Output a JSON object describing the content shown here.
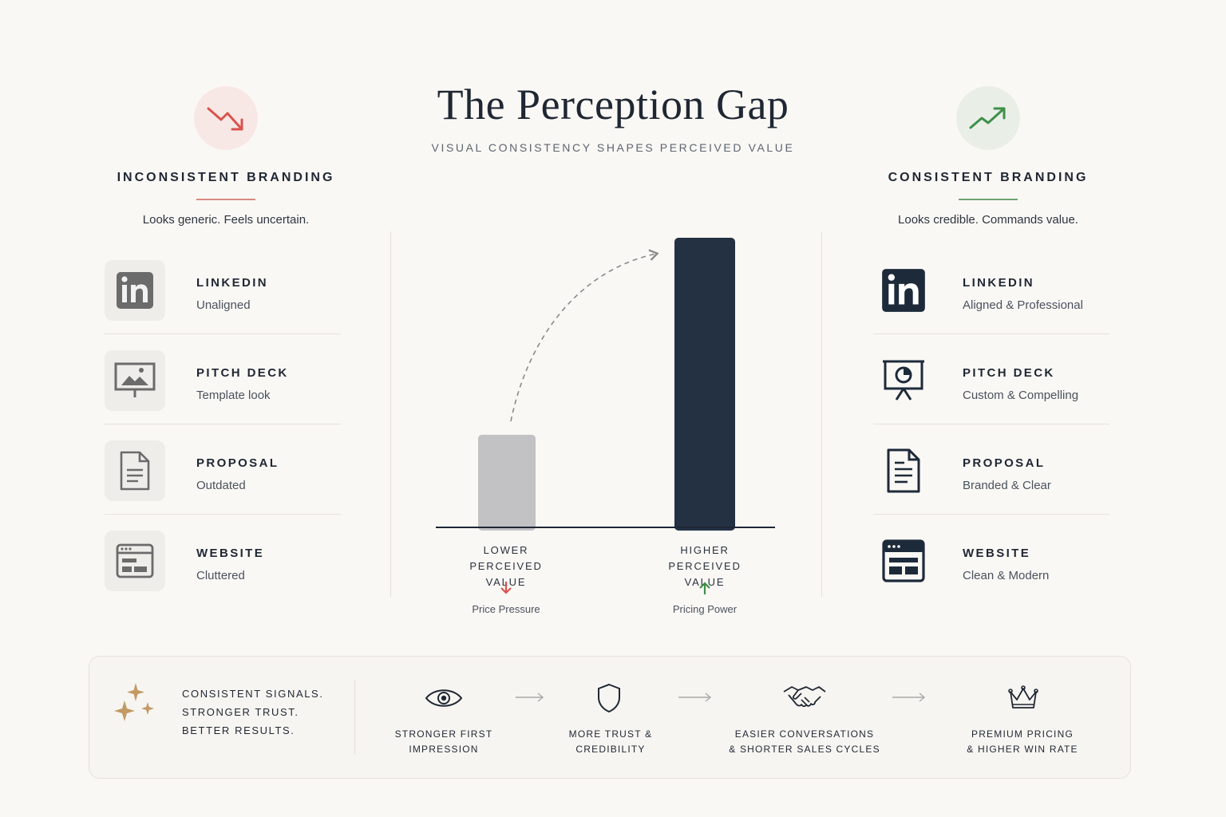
{
  "header": {
    "title": "The Perception Gap",
    "subtitle": "VISUAL CONSISTENCY SHAPES PERCEIVED VALUE"
  },
  "left": {
    "icon": "trend-down-icon",
    "title": "INCONSISTENT BRANDING",
    "subtitle": "Looks generic. Feels uncertain.",
    "accent": "#d9534f",
    "items": [
      {
        "icon": "linkedin-icon",
        "name": "LINKEDIN",
        "desc": "Unaligned"
      },
      {
        "icon": "presentation-image-icon",
        "name": "PITCH DECK",
        "desc": "Template look"
      },
      {
        "icon": "document-icon",
        "name": "PROPOSAL",
        "desc": "Outdated"
      },
      {
        "icon": "browser-window-icon",
        "name": "WEBSITE",
        "desc": "Cluttered"
      }
    ]
  },
  "right": {
    "icon": "trend-up-icon",
    "title": "CONSISTENT  BRANDING",
    "subtitle": "Looks credible. Commands value.",
    "accent": "#3f8f4a",
    "items": [
      {
        "icon": "linkedin-icon",
        "name": "LINKEDIN",
        "desc": "Aligned & Professional"
      },
      {
        "icon": "presentation-chart-icon",
        "name": "PITCH DECK",
        "desc": "Custom & Compelling"
      },
      {
        "icon": "document-icon",
        "name": "PROPOSAL",
        "desc": "Branded & Clear"
      },
      {
        "icon": "browser-window-icon",
        "name": "WEBSITE",
        "desc": "Clean & Modern"
      }
    ]
  },
  "chart_data": {
    "type": "bar",
    "categories": [
      "LOWER PERCEIVED VALUE",
      "HIGHER PERCEIVED VALUE"
    ],
    "values": [
      32,
      100
    ],
    "ylim": [
      0,
      100
    ],
    "colors": [
      "#c2c2c4",
      "#233143"
    ],
    "notes": [
      {
        "icon": "arrow-down-icon",
        "text": "Price Pressure",
        "color": "#d9534f"
      },
      {
        "icon": "arrow-up-icon",
        "text": "Pricing Power",
        "color": "#3f8f4a"
      }
    ]
  },
  "footer": {
    "icon": "sparkle-icon",
    "tagline": [
      "CONSISTENT SIGNALS.",
      "STRONGER TRUST.",
      "BETTER RESULTS."
    ],
    "steps": [
      {
        "icon": "eye-icon",
        "label": [
          "STRONGER FIRST",
          "IMPRESSION"
        ]
      },
      {
        "icon": "shield-icon",
        "label": [
          "MORE TRUST &",
          "CREDIBILITY"
        ]
      },
      {
        "icon": "handshake-icon",
        "label": [
          "EASIER CONVERSATIONS",
          "& SHORTER SALES CYCLES"
        ]
      },
      {
        "icon": "crown-icon",
        "label": [
          "PREMIUM PRICING",
          "& HIGHER WIN RATE"
        ]
      }
    ]
  }
}
